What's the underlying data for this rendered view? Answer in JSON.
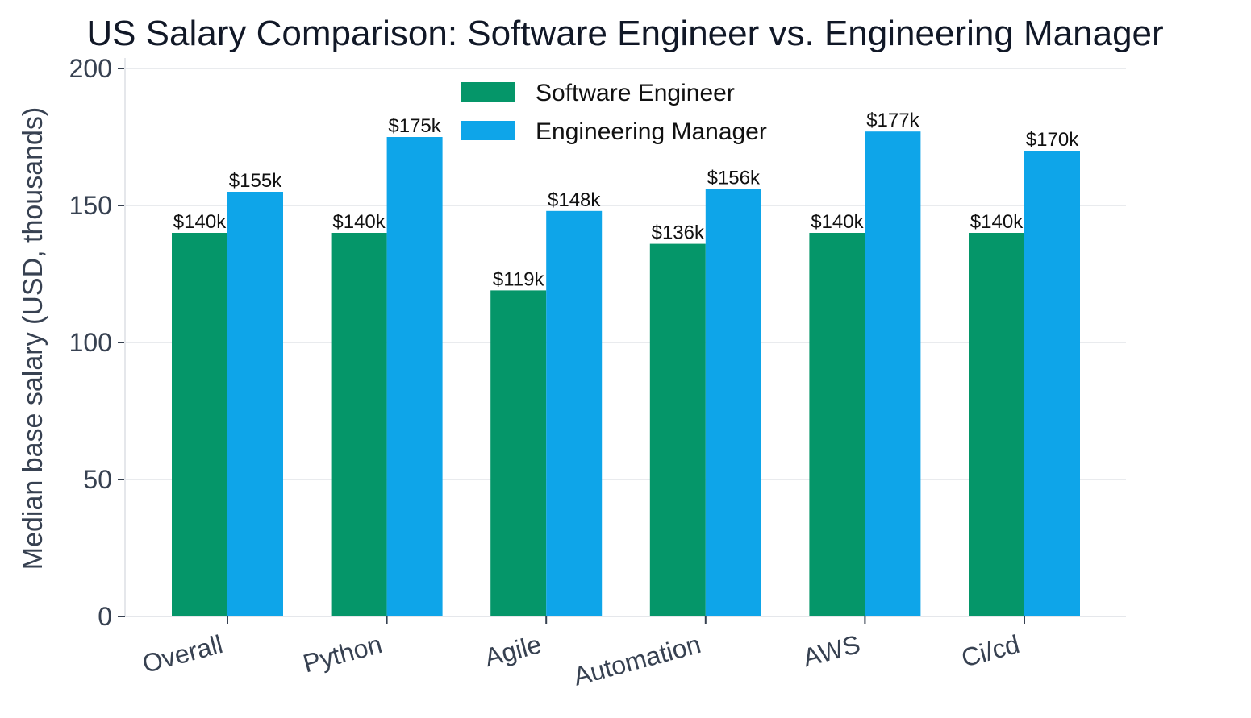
{
  "chart_data": {
    "type": "bar",
    "title": "US Salary Comparison: Software Engineer vs. Engineering Manager",
    "xlabel": "",
    "ylabel": "Median base salary (USD, thousands)",
    "ylim": [
      0,
      200
    ],
    "yticks": [
      0,
      50,
      100,
      150,
      200
    ],
    "grid": true,
    "legend_position": "top-center",
    "categories": [
      "Overall",
      "Python",
      "Agile",
      "Automation",
      "AWS",
      "Ci/cd"
    ],
    "series": [
      {
        "name": "Software Engineer",
        "color": "#059669",
        "values": [
          140,
          140,
          119,
          136,
          140,
          140
        ],
        "labels": [
          "$140k",
          "$140k",
          "$119k",
          "$136k",
          "$140k",
          "$140k"
        ]
      },
      {
        "name": "Engineering Manager",
        "color": "#0ea5e9",
        "values": [
          155,
          175,
          148,
          156,
          177,
          170
        ],
        "labels": [
          "$155k",
          "$175k",
          "$148k",
          "$156k",
          "$177k",
          "$170k"
        ]
      }
    ]
  }
}
